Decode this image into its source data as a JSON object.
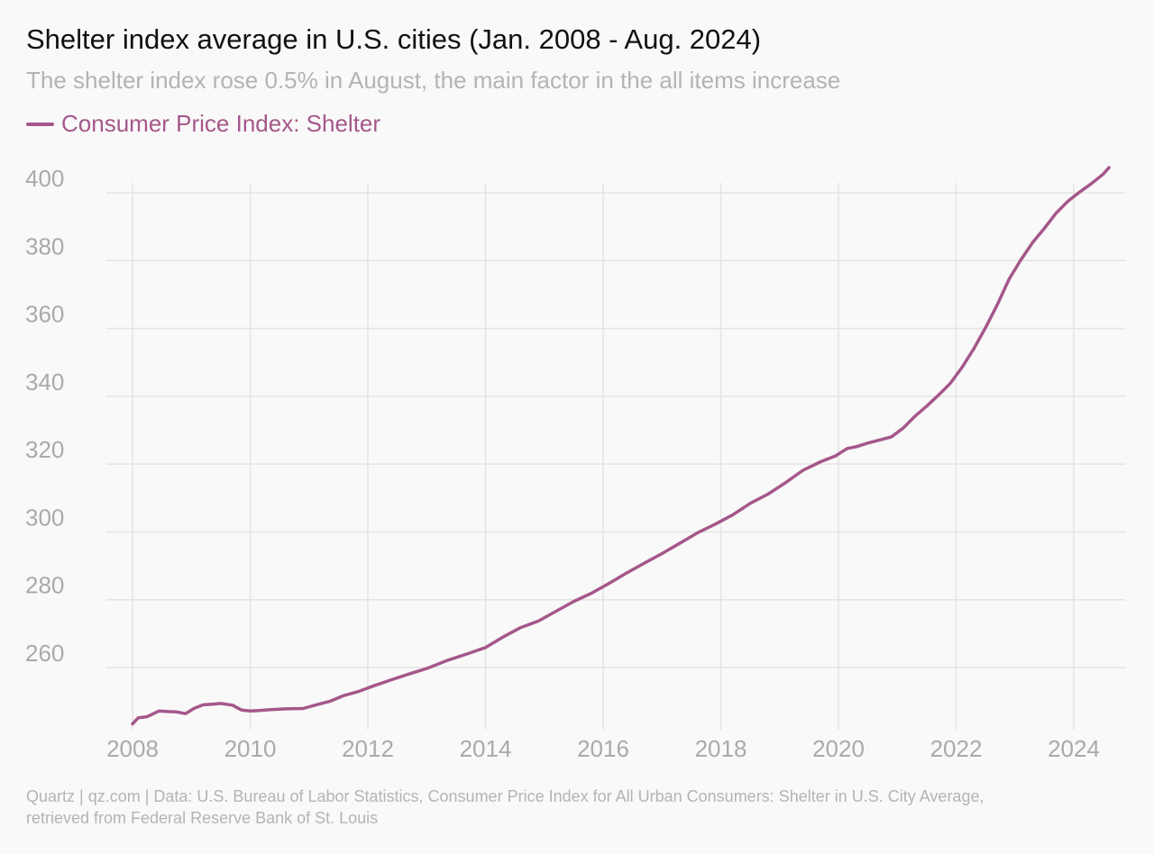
{
  "title": "Shelter index average in U.S. cities (Jan. 2008 - Aug. 2024)",
  "subtitle": "The shelter index rose 0.5% in August, the main factor in the all items increase",
  "footer": {
    "line1": "Quartz | qz.com | Data: U.S. Bureau of Labor Statistics, Consumer Price Index for All Urban Consumers: Shelter in U.S. City Average,",
    "line2": "retrieved from Federal Reserve Bank of St. Louis"
  },
  "colors": {
    "series": "#a5578a",
    "grid": "#e4e4e4",
    "axis_text": "#aaaaaa",
    "background": "#f9f9f9"
  },
  "chart_data": {
    "type": "line",
    "title": "Shelter index average in U.S. cities (Jan. 2008 - Aug. 2024)",
    "subtitle": "The shelter index rose 0.5% in August, the main factor in the all items increase",
    "xlim": [
      2008,
      2024.6
    ],
    "ylim": [
      240,
      405
    ],
    "x_ticks": [
      2008,
      2010,
      2012,
      2014,
      2016,
      2018,
      2020,
      2022,
      2024
    ],
    "x_tick_labels": [
      "2008",
      "2010",
      "2012",
      "2014",
      "2016",
      "2018",
      "2020",
      "2022",
      "2024"
    ],
    "y_ticks": [
      260,
      280,
      300,
      320,
      340,
      360,
      380,
      400
    ],
    "y_tick_labels": [
      "260",
      "280",
      "300",
      "320",
      "340",
      "360",
      "380",
      "400"
    ],
    "grid": true,
    "legend": "top-left",
    "series": [
      {
        "name": "Consumer Price Index: Shelter",
        "x": [
          2008.0,
          2008.1,
          2008.25,
          2008.45,
          2008.6,
          2008.75,
          2008.9,
          2009.05,
          2009.2,
          2009.35,
          2009.5,
          2009.7,
          2009.85,
          2010.0,
          2010.15,
          2010.35,
          2010.6,
          2010.9,
          2011.1,
          2011.35,
          2011.6,
          2011.85,
          2012.1,
          2012.4,
          2012.7,
          2013.0,
          2013.35,
          2013.7,
          2014.0,
          2014.3,
          2014.6,
          2014.9,
          2015.2,
          2015.5,
          2015.8,
          2016.1,
          2016.4,
          2016.7,
          2017.0,
          2017.3,
          2017.6,
          2017.9,
          2018.2,
          2018.5,
          2018.8,
          2019.1,
          2019.4,
          2019.7,
          2019.95,
          2020.15,
          2020.3,
          2020.5,
          2020.7,
          2020.9,
          2021.1,
          2021.3,
          2021.5,
          2021.7,
          2021.9,
          2022.1,
          2022.3,
          2022.5,
          2022.7,
          2022.9,
          2023.1,
          2023.3,
          2023.5,
          2023.7,
          2023.9,
          2024.1,
          2024.3,
          2024.5,
          2024.6
        ],
        "values": [
          243.4,
          245.2,
          245.5,
          247.2,
          247.0,
          246.9,
          246.4,
          248.0,
          249.0,
          249.2,
          249.4,
          248.9,
          247.5,
          247.2,
          247.3,
          247.6,
          247.8,
          247.9,
          248.9,
          250.0,
          251.8,
          253.0,
          254.6,
          256.4,
          258.1,
          259.7,
          262.1,
          264.1,
          265.9,
          269.0,
          271.8,
          273.7,
          276.6,
          279.5,
          281.9,
          284.8,
          287.9,
          290.8,
          293.6,
          296.6,
          299.7,
          302.2,
          305.0,
          308.4,
          311.1,
          314.5,
          318.2,
          320.7,
          322.4,
          324.6,
          325.1,
          326.2,
          327.1,
          328.0,
          330.6,
          334.1,
          337.1,
          340.3,
          343.8,
          348.5,
          354.0,
          360.2,
          367.0,
          374.5,
          380.2,
          385.3,
          389.5,
          394.0,
          397.5,
          400.2,
          402.7,
          405.5,
          407.4
        ]
      }
    ]
  }
}
